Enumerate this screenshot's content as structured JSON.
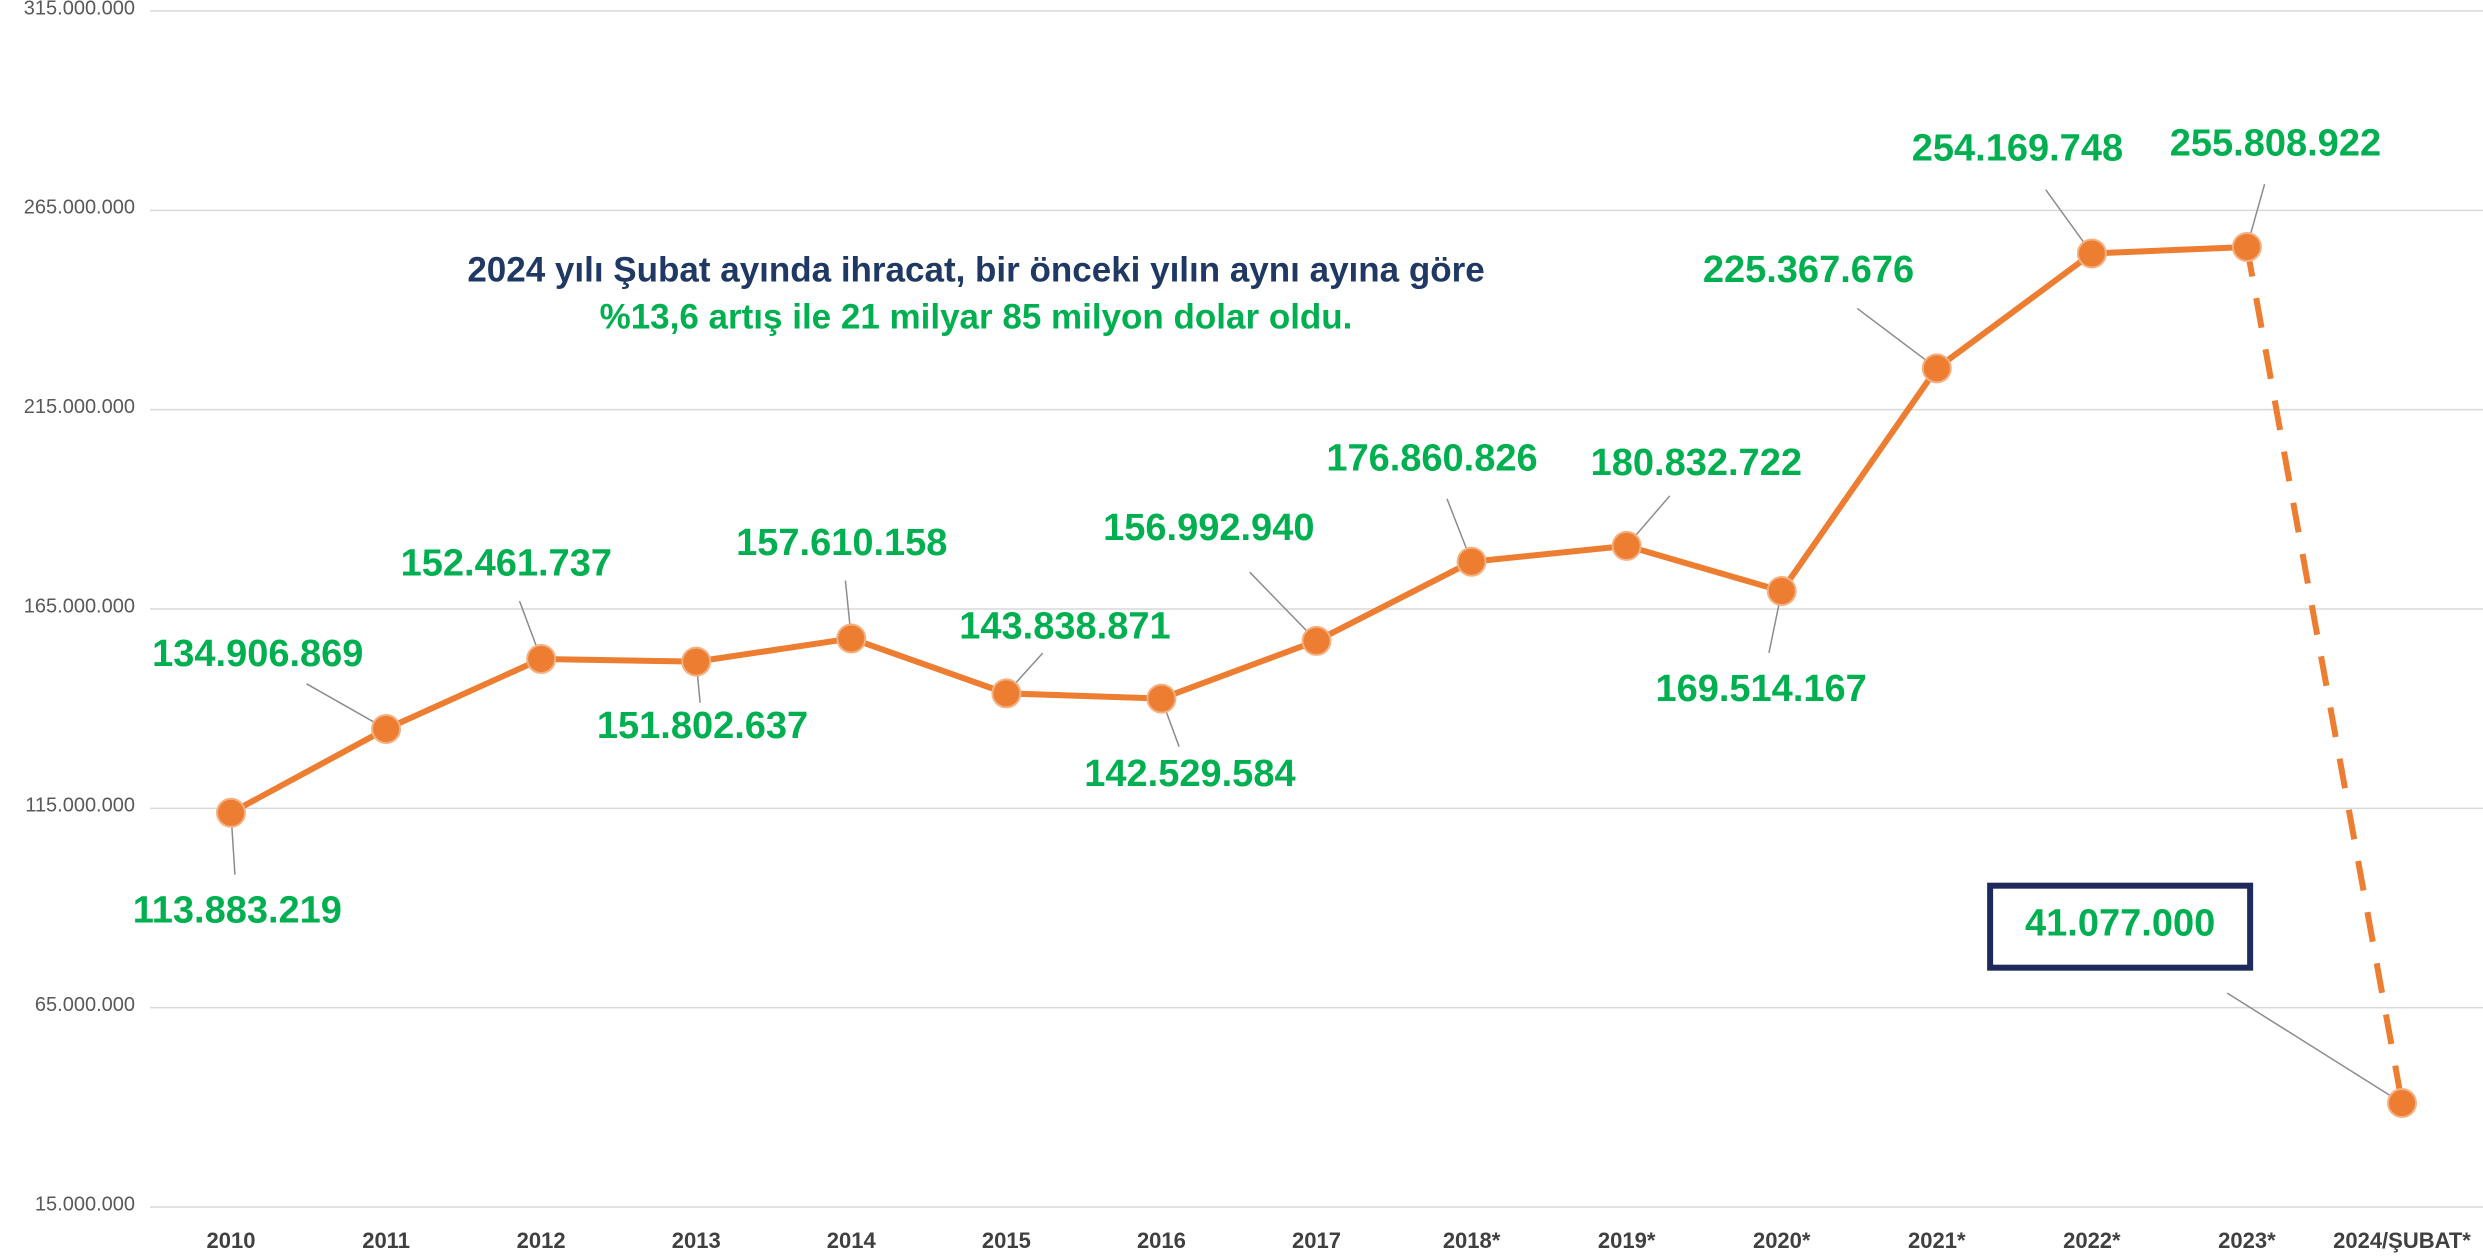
{
  "chart_data": {
    "type": "line",
    "annotation": [
      "2024 yılı Şubat ayında ihracat, bir önceki yılın aynı ayına göre",
      "%13,6 artış ile 21 milyar 85 milyon dolar oldu."
    ],
    "categories": [
      "2010",
      "2011",
      "2012",
      "2013",
      "2014",
      "2015",
      "2016",
      "2017",
      "2018*",
      "2019*",
      "2020*",
      "2021*",
      "2022*",
      "2023*",
      "2024/ŞUBAT*"
    ],
    "series": [
      {
        "color": "#ed7d31",
        "values": [
          113883219,
          134906869,
          152461737,
          151802637,
          157610158,
          143838871,
          142529584,
          156992940,
          176860826,
          180832722,
          169514167,
          225367676,
          254169748,
          255808922,
          41077000
        ],
        "value_labels": [
          "113.883.219",
          "134.906.869",
          "152.461.737",
          "151.802.637",
          "157.610.158",
          "143.838.871",
          "142.529.584",
          "156.992.940",
          "176.860.826",
          "180.832.722",
          "169.514.167",
          "225.367.676",
          "254.169.748",
          "255.808.922",
          "41.077.000"
        ]
      }
    ],
    "label_color": "#00b050",
    "dashed_last_segment": true,
    "ylim": [
      15000000,
      315000000
    ],
    "yticks": [
      {
        "value": 15000000,
        "label": "15.000.000"
      },
      {
        "value": 65000000,
        "label": "65.000.000"
      },
      {
        "value": 115000000,
        "label": "115.000.000"
      },
      {
        "value": 165000000,
        "label": "165.000.000"
      },
      {
        "value": 215000000,
        "label": "215.000.000"
      },
      {
        "value": 265000000,
        "label": "265.000.000"
      },
      {
        "value": 315000000,
        "label": "315.000.000"
      }
    ],
    "grid": true
  }
}
